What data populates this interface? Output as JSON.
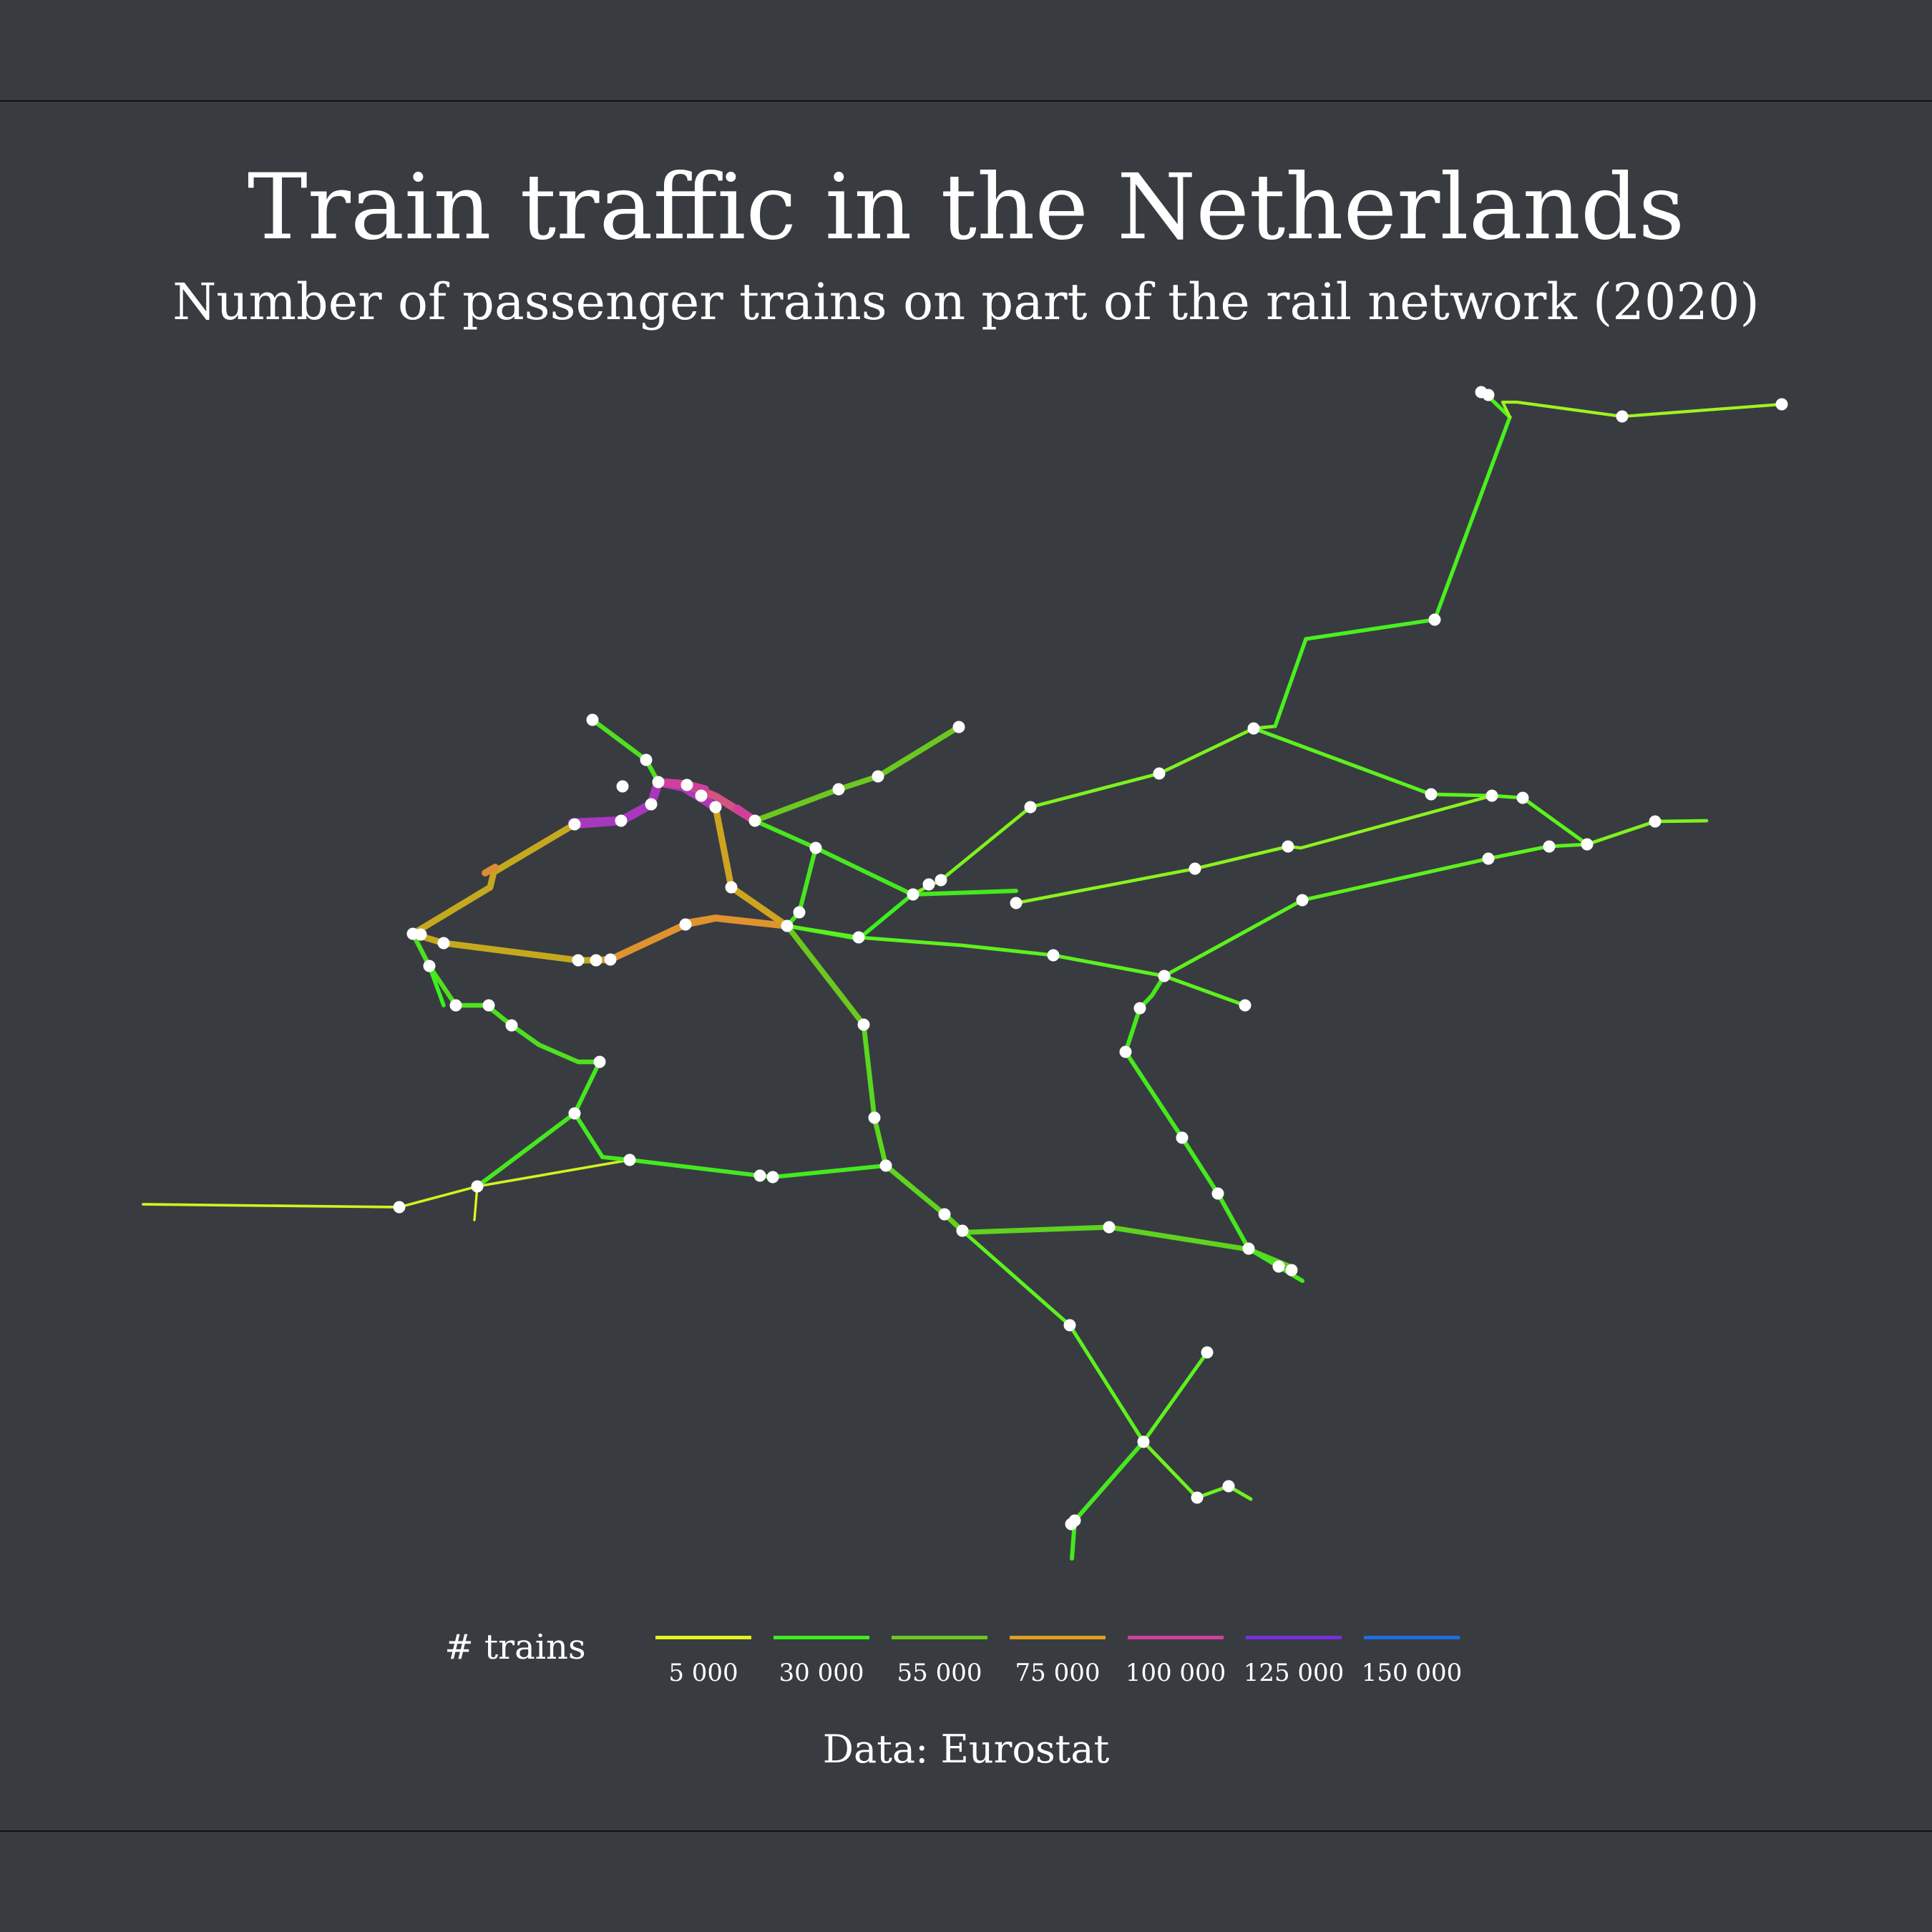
{
  "title": "Train traffic in the Netherlands",
  "subtitle": "Number of passenger trains on part of the rail network (2020)",
  "caption": "Data: Eurostat",
  "legend": {
    "title": "# trains",
    "items": [
      {
        "label": "5 000",
        "color": "#e2f51e"
      },
      {
        "label": "30 000",
        "color": "#3cf01e"
      },
      {
        "label": "55 000",
        "color": "#6cc820"
      },
      {
        "label": "75 000",
        "color": "#e19e1e"
      },
      {
        "label": "100 000",
        "color": "#d0409a"
      },
      {
        "label": "125 000",
        "color": "#7a2ee0"
      },
      {
        "label": "150 000",
        "color": "#1f6de0"
      }
    ]
  },
  "map_data": {
    "type": "rail-network",
    "segments": [
      {
        "from": "w_end",
        "to": "vlissingen",
        "trains": 8000
      },
      {
        "from": "vlissingen",
        "to": "middelburg",
        "trains": 12000
      },
      {
        "from": "middelburg",
        "to": "goes",
        "trains": 14000
      },
      {
        "from": "middelburg",
        "to": "z_stub",
        "trains": 4000
      },
      {
        "from": "middelburg",
        "to": "nbr1",
        "trains": 20000
      },
      {
        "from": "goes",
        "to": "roosendaal_n",
        "trains": 25000
      },
      {
        "from": "roosendaal_n",
        "to": "dordrecht_s",
        "trains": 35000
      },
      {
        "from": "goes",
        "to": "roosendaal",
        "trains": 32000
      },
      {
        "from": "roosendaal",
        "to": "breda",
        "trains": 38000
      },
      {
        "from": "breda",
        "to": "breda2",
        "trains": 30000
      },
      {
        "from": "breda2",
        "to": "tilburg",
        "trains": 30000
      },
      {
        "from": "tilburg",
        "to": "denbosch_s",
        "trains": 33000
      },
      {
        "from": "denbosch_s",
        "to": "denbosch",
        "trains": 40000
      },
      {
        "from": "denbosch",
        "to": "utrecht_s",
        "trains": 42000
      },
      {
        "from": "utrecht_s",
        "to": "utrecht",
        "trains": 58000
      },
      {
        "from": "tilburg",
        "to": "eindhoven",
        "trains": 58000
      },
      {
        "from": "eindhoven",
        "to": "helmond",
        "trains": 55000
      },
      {
        "from": "eindhoven",
        "to": "weert",
        "trains": 38000
      },
      {
        "from": "helmond",
        "to": "venlo_w",
        "trains": 22000
      },
      {
        "from": "venlo_w",
        "to": "venlo",
        "trains": 16000
      },
      {
        "from": "venlo",
        "to": "venlo2",
        "trains": 10000
      },
      {
        "from": "weert",
        "to": "roermond",
        "trains": 25000
      },
      {
        "from": "roermond",
        "to": "sittard",
        "trains": 32000
      },
      {
        "from": "sittard",
        "to": "heerlen",
        "trains": 30000
      },
      {
        "from": "heerlen",
        "to": "heerlen2",
        "trains": 22000
      },
      {
        "from": "heerlen2",
        "to": "heerlen_e",
        "trains": 12000
      },
      {
        "from": "sittard",
        "to": "maastricht",
        "trains": 35000
      },
      {
        "from": "maastricht",
        "to": "maas_s",
        "trains": 6000
      },
      {
        "from": "dordrecht_s",
        "to": "dordrecht",
        "trains": 38000
      },
      {
        "from": "dordrecht",
        "to": "rotterdam_s",
        "trains": 40000
      },
      {
        "from": "rotterdam_s",
        "to": "rotterdam",
        "trains": 50000
      },
      {
        "from": "rotterdam",
        "to": "schiedam",
        "trains": 38000
      },
      {
        "from": "schiedam",
        "to": "schiedam2",
        "trains": 35000
      },
      {
        "from": "schiedam2",
        "to": "hoek",
        "trains": 35000
      },
      {
        "from": "hoek",
        "to": "hoek2",
        "trains": 32000
      },
      {
        "from": "rotterdam",
        "to": "rotterdam2",
        "trains": 85000
      },
      {
        "from": "rotterdam2",
        "to": "rotterdam3",
        "trains": 55000
      },
      {
        "from": "rotterdam3",
        "to": "gouda_w",
        "trains": 60000
      },
      {
        "from": "gouda_w",
        "to": "gouda",
        "trains": 80000
      },
      {
        "from": "gouda",
        "to": "utrecht",
        "trains": 70000
      },
      {
        "from": "hoek2",
        "to": "denhaag",
        "trains": 40000
      },
      {
        "from": "denhaag",
        "to": "denhaag2",
        "trains": 38000
      },
      {
        "from": "denhaag",
        "to": "leiden",
        "trains": 60000
      },
      {
        "from": "leiden",
        "to": "leiden_n",
        "trains": 80000
      },
      {
        "from": "leiden_n",
        "to": "schiphol_w",
        "trains": 45000
      },
      {
        "from": "schiphol_w",
        "to": "schiphol",
        "trains": 100000
      },
      {
        "from": "schiphol",
        "to": "amsterdam_s",
        "trains": 130000
      },
      {
        "from": "amsterdam_s",
        "to": "amsterdam_c",
        "trains": 75000
      },
      {
        "from": "amsterdam_s",
        "to": "amsterdam_zo",
        "trains": 70000
      },
      {
        "from": "amsterdam_zo",
        "to": "breukelen",
        "trains": 72000
      },
      {
        "from": "breukelen",
        "to": "utrecht",
        "trains": 70000
      },
      {
        "from": "haarlem",
        "to": "ijmuiden",
        "trains": 30000
      },
      {
        "from": "ijmuiden",
        "to": "amsterdam_c",
        "trains": 50000
      },
      {
        "from": "amsterdam_c",
        "to": "amsterdam_w",
        "trains": 100000
      },
      {
        "from": "amsterdam_w",
        "to": "amsterdam_a",
        "trains": 45000
      },
      {
        "from": "amsterdam_a",
        "to": "amsterdam_e",
        "trains": 100000
      },
      {
        "from": "amsterdam_e",
        "to": "weesp",
        "trains": 60000
      },
      {
        "from": "weesp",
        "to": "almere",
        "trains": 60000
      },
      {
        "from": "almere",
        "to": "almere2",
        "trains": 38000
      },
      {
        "from": "almere2",
        "to": "lelystad",
        "trains": 32000
      },
      {
        "from": "weesp",
        "to": "hilversum",
        "trains": 40000
      },
      {
        "from": "hilversum",
        "to": "amersfoort_w",
        "trains": 35000
      },
      {
        "from": "amersfoort_w",
        "to": "amersfoort",
        "trains": 38000
      },
      {
        "from": "hilversum",
        "to": "hilversum_s",
        "trains": 35000
      },
      {
        "from": "hilversum_s",
        "to": "utrecht",
        "trains": 30000
      },
      {
        "from": "utrecht",
        "to": "ut_amf",
        "trains": 42000
      },
      {
        "from": "ut_amf",
        "to": "amersfoort",
        "trains": 40000
      },
      {
        "from": "amersfoort",
        "to": "amf_e",
        "trains": 38000
      },
      {
        "from": "amersfoort",
        "to": "amf_ne",
        "trains": 35000
      },
      {
        "from": "amf_ne",
        "to": "apeldoorn_n",
        "trains": 20000
      },
      {
        "from": "apeldoorn_n",
        "to": "zwolle_w",
        "trains": 22000
      },
      {
        "from": "zwolle_w",
        "to": "zwolle",
        "trains": 25000
      },
      {
        "from": "zwolle",
        "to": "zw_n",
        "trains": 35000
      },
      {
        "from": "zw_n",
        "to": "assen",
        "trains": 35000
      },
      {
        "from": "assen",
        "to": "assen_n",
        "trains": 20000
      },
      {
        "from": "assen_n",
        "to": "groningen",
        "trains": 25000
      },
      {
        "from": "groningen",
        "to": "groningen2",
        "trains": 20000
      },
      {
        "from": "groningen2",
        "to": "gr_e",
        "trains": 15000
      },
      {
        "from": "gr_e",
        "to": "nieuweschans",
        "trains": 8000
      },
      {
        "from": "zwolle",
        "to": "zw_e",
        "trains": 15000
      },
      {
        "from": "zw_e",
        "to": "almelo",
        "trains": 20000
      },
      {
        "from": "almelo",
        "to": "almelo2",
        "trains": 20000
      },
      {
        "from": "almelo2",
        "to": "hengelo",
        "trains": 30000
      },
      {
        "from": "hengelo",
        "to": "enschede",
        "trains": 28000
      },
      {
        "from": "enschede",
        "to": "ens_e",
        "trains": 12000
      },
      {
        "from": "amf_e",
        "to": "apeldoorn",
        "trains": 10000
      },
      {
        "from": "apeldoorn",
        "to": "deventer",
        "trains": 20000
      },
      {
        "from": "deventer",
        "to": "deventer2",
        "trains": 25000
      },
      {
        "from": "deventer2",
        "to": "almelo2",
        "trains": 25000
      },
      {
        "from": "utrecht",
        "to": "ut_e",
        "trains": 38000
      },
      {
        "from": "ut_e",
        "to": "ut_e2",
        "trains": 10000
      },
      {
        "from": "ut_e2",
        "to": "ede",
        "trains": 38000
      },
      {
        "from": "ede",
        "to": "arnhem",
        "trains": 38000
      },
      {
        "from": "arnhem",
        "to": "zevenaar",
        "trains": 30000
      },
      {
        "from": "arnhem",
        "to": "ar_ne",
        "trains": 22000
      },
      {
        "from": "ar_ne",
        "to": "zutphen",
        "trains": 20000
      },
      {
        "from": "zutphen",
        "to": "hengelo_w",
        "trains": 15000
      },
      {
        "from": "hengelo_w",
        "to": "hengelo2",
        "trains": 12000
      },
      {
        "from": "hengelo2",
        "to": "hengelo",
        "trains": 10000
      },
      {
        "from": "arnhem",
        "to": "nijmegen_n",
        "trains": 50000
      },
      {
        "from": "nijmegen_n",
        "to": "nijmegen",
        "trains": 32000
      },
      {
        "from": "nijmegen",
        "to": "nijmegen2",
        "trains": 38000
      },
      {
        "from": "nijmegen2",
        "to": "venray",
        "trains": 20000
      },
      {
        "from": "venray",
        "to": "venlo_n",
        "trains": 18000
      },
      {
        "from": "venlo_n",
        "to": "venlo",
        "trains": 12000
      },
      {
        "from": "venlo",
        "to": "venlo_e",
        "trains": 8000
      },
      {
        "from": "nijmegen2",
        "to": "ny_w",
        "trains": 38000
      },
      {
        "from": "utrecht",
        "to": "culemborg",
        "trains": 55000
      },
      {
        "from": "culemborg",
        "to": "geldermalsen",
        "trains": 45000
      },
      {
        "from": "geldermalsen",
        "to": "denbosch_n",
        "trains": 38000
      },
      {
        "from": "denbosch_n",
        "to": "denbosch2",
        "trains": 40000
      },
      {
        "from": "denbosch2",
        "to": "denbosch3",
        "trains": 45000
      },
      {
        "from": "denbosch3",
        "to": "boxtel",
        "trains": 45000
      },
      {
        "from": "boxtel",
        "to": "boxtel2",
        "trains": 45000
      },
      {
        "from": "boxtel2",
        "to": "eindhoven2",
        "trains": 65000
      },
      {
        "from": "eindhoven2",
        "to": "eindhoven",
        "trains": 65000
      },
      {
        "from": "ut_e2",
        "to": "ut_e3",
        "trains": 30000
      }
    ],
    "stations": [
      "vlissingen",
      "middelburg",
      "goes",
      "roosendaal",
      "breda",
      "breda2",
      "tilburg",
      "denbosch",
      "eindhoven",
      "eindhoven2",
      "helmond",
      "weert",
      "roermond",
      "sittard",
      "heerlen",
      "heerlen2",
      "maastricht",
      "dordrecht",
      "rotterdam",
      "rotterdam2",
      "schiedam",
      "schiedam2",
      "hoek",
      "hoek2",
      "denhaag",
      "leiden",
      "schiphol",
      "amsterdam_s",
      "amsterdam_c",
      "amsterdam_w",
      "amsterdam_a",
      "amsterdam_e",
      "haarlem",
      "ijmuiden",
      "weesp",
      "almere",
      "almere2",
      "lelystad",
      "hilversum",
      "hilversum_s",
      "amersfoort",
      "amf_ne",
      "apeldoorn",
      "deventer",
      "zwolle",
      "assen",
      "groningen",
      "groningen2",
      "nieuweschans",
      "almelo",
      "hengelo",
      "enschede",
      "arnhem",
      "zutphen",
      "nijmegen",
      "venray",
      "venlo",
      "venlo2",
      "utrecht",
      "utrecht2",
      "ede",
      "culemborg",
      "geldermalsen",
      "boxtel",
      "gouda",
      "gouda_w",
      "delft",
      "zw_e"
    ]
  }
}
